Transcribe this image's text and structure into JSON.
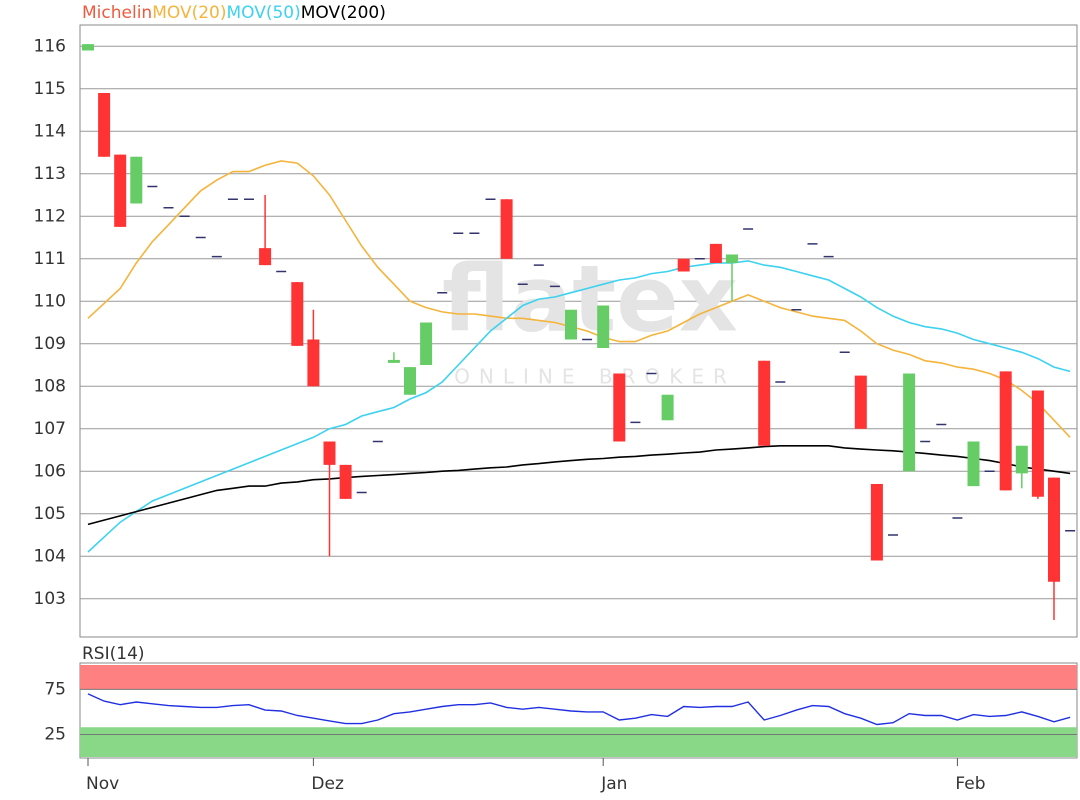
{
  "chart_data": [
    {
      "type": "candlestick",
      "categories": [
        "Nov",
        null,
        null,
        null,
        null,
        null,
        null,
        null,
        null,
        null,
        null,
        null,
        null,
        null,
        "Dez",
        null,
        null,
        null,
        null,
        null,
        null,
        null,
        null,
        null,
        null,
        null,
        null,
        null,
        null,
        null,
        null,
        null,
        "Jan",
        null,
        null,
        null,
        null,
        null,
        null,
        null,
        null,
        null,
        null,
        null,
        null,
        null,
        null,
        null,
        null,
        null,
        null,
        null,
        null,
        null,
        "Feb",
        null,
        null,
        null,
        null,
        null,
        null,
        null
      ],
      "ohlc": {
        "name": "Michelin",
        "color": "#f05a3c",
        "up_color": "#66cc66",
        "down_color": "#ff3333",
        "flat_color": "#33336e",
        "open": [
          115.9,
          114.9,
          113.45,
          112.3,
          112.7,
          112.2,
          112.0,
          111.5,
          111.05,
          112.4,
          112.4,
          111.25,
          110.7,
          110.45,
          109.1,
          106.7,
          106.15,
          105.5,
          106.7,
          108.55,
          107.8,
          108.5,
          110.2,
          111.6,
          111.6,
          112.4,
          112.4,
          110.4,
          110.85,
          110.35,
          109.1,
          109.1,
          108.9,
          108.3,
          107.15,
          108.3,
          107.2,
          111.0,
          111.0,
          111.35,
          110.9,
          111.7,
          108.6,
          108.1,
          109.8,
          111.35,
          111.05,
          108.8,
          108.25,
          105.7,
          104.5,
          106.0,
          106.7,
          107.1,
          104.9,
          105.65,
          106.0,
          108.35,
          105.95,
          107.9,
          105.85,
          104.6
        ],
        "high": [
          116.05,
          114.9,
          113.45,
          113.4,
          112.7,
          112.2,
          112.0,
          111.5,
          111.05,
          112.4,
          112.4,
          112.5,
          110.7,
          110.45,
          109.8,
          106.7,
          106.15,
          105.5,
          106.7,
          108.8,
          108.45,
          109.5,
          110.2,
          111.6,
          111.6,
          112.4,
          112.4,
          110.4,
          110.85,
          110.35,
          109.8,
          109.1,
          109.9,
          108.3,
          107.15,
          108.3,
          107.8,
          111.0,
          111.0,
          111.35,
          111.1,
          111.7,
          108.6,
          108.1,
          109.8,
          111.35,
          111.05,
          108.8,
          108.25,
          105.7,
          104.5,
          108.3,
          106.7,
          107.1,
          104.9,
          106.7,
          106.0,
          108.35,
          106.6,
          107.9,
          105.85,
          104.6
        ],
        "low": [
          115.9,
          113.4,
          111.75,
          112.3,
          112.7,
          112.2,
          112.0,
          111.5,
          111.05,
          112.4,
          112.4,
          110.85,
          110.7,
          108.95,
          108.0,
          104.0,
          105.35,
          105.5,
          106.7,
          108.55,
          107.8,
          108.5,
          110.2,
          111.6,
          111.6,
          112.4,
          111.0,
          110.4,
          110.85,
          110.35,
          109.1,
          109.1,
          108.9,
          106.7,
          107.15,
          108.3,
          107.2,
          110.7,
          111.0,
          110.9,
          110.0,
          111.7,
          106.6,
          108.1,
          109.8,
          111.35,
          111.05,
          108.8,
          107.0,
          103.9,
          104.5,
          106.0,
          106.7,
          107.1,
          104.9,
          105.65,
          106.0,
          105.55,
          105.6,
          105.35,
          102.5,
          104.6
        ],
        "close": [
          116.05,
          113.4,
          111.75,
          113.4,
          112.7,
          112.2,
          112.0,
          111.5,
          111.05,
          112.4,
          112.4,
          110.85,
          110.7,
          108.95,
          108.0,
          106.15,
          105.35,
          105.5,
          106.7,
          108.62,
          108.45,
          109.5,
          110.2,
          111.6,
          111.6,
          112.4,
          111.0,
          110.4,
          110.85,
          110.35,
          109.8,
          109.1,
          109.9,
          106.7,
          107.15,
          108.3,
          107.8,
          110.7,
          111.0,
          110.9,
          111.1,
          111.7,
          106.6,
          108.1,
          109.8,
          111.35,
          111.05,
          108.8,
          107.0,
          103.9,
          104.5,
          108.3,
          106.7,
          107.1,
          104.9,
          106.7,
          106.0,
          105.55,
          106.6,
          105.4,
          103.4,
          104.6
        ]
      },
      "series": [
        {
          "name": "MOV(20)",
          "color": "#f5b43c",
          "values": [
            109.6,
            109.95,
            110.3,
            110.9,
            111.4,
            111.8,
            112.2,
            112.6,
            112.85,
            113.05,
            113.05,
            113.2,
            113.3,
            113.25,
            112.95,
            112.5,
            111.9,
            111.3,
            110.8,
            110.4,
            110.0,
            109.85,
            109.75,
            109.7,
            109.7,
            109.65,
            109.6,
            109.6,
            109.55,
            109.5,
            109.4,
            109.3,
            109.15,
            109.05,
            109.05,
            109.2,
            109.3,
            109.5,
            109.7,
            109.85,
            110.0,
            110.15,
            110.0,
            109.85,
            109.75,
            109.65,
            109.6,
            109.55,
            109.3,
            109.0,
            108.85,
            108.75,
            108.6,
            108.55,
            108.45,
            108.4,
            108.3,
            108.15,
            107.9,
            107.6,
            107.2,
            106.8
          ]
        },
        {
          "name": "MOV(50)",
          "color": "#3cd2f0",
          "values": [
            104.1,
            104.45,
            104.8,
            105.05,
            105.3,
            105.45,
            105.6,
            105.75,
            105.9,
            106.05,
            106.2,
            106.35,
            106.5,
            106.65,
            106.8,
            107.0,
            107.1,
            107.3,
            107.4,
            107.5,
            107.7,
            107.85,
            108.1,
            108.5,
            108.9,
            109.3,
            109.6,
            109.9,
            110.05,
            110.1,
            110.2,
            110.3,
            110.4,
            110.5,
            110.55,
            110.65,
            110.7,
            110.8,
            110.85,
            110.9,
            110.9,
            110.95,
            110.85,
            110.8,
            110.7,
            110.6,
            110.5,
            110.3,
            110.1,
            109.85,
            109.65,
            109.5,
            109.4,
            109.35,
            109.25,
            109.1,
            109.0,
            108.9,
            108.8,
            108.65,
            108.45,
            108.35
          ]
        },
        {
          "name": "MOV(200)",
          "color": "#000000",
          "values": [
            104.75,
            104.85,
            104.95,
            105.05,
            105.15,
            105.25,
            105.35,
            105.45,
            105.55,
            105.6,
            105.65,
            105.65,
            105.72,
            105.75,
            105.8,
            105.82,
            105.85,
            105.88,
            105.9,
            105.92,
            105.95,
            105.97,
            106.0,
            106.02,
            106.05,
            106.08,
            106.1,
            106.15,
            106.18,
            106.22,
            106.25,
            106.28,
            106.3,
            106.33,
            106.35,
            106.38,
            106.4,
            106.43,
            106.45,
            106.5,
            106.52,
            106.55,
            106.58,
            106.6,
            106.6,
            106.6,
            106.6,
            106.55,
            106.52,
            106.5,
            106.48,
            106.45,
            106.42,
            106.38,
            106.35,
            106.3,
            106.25,
            106.18,
            106.1,
            106.05,
            106.0,
            105.95
          ]
        }
      ],
      "ylim": [
        102.1,
        116.5
      ],
      "yticks": [
        103,
        104,
        105,
        106,
        107,
        108,
        109,
        110,
        111,
        112,
        113,
        114,
        115,
        116
      ],
      "grid": true,
      "watermark": {
        "logo": "flatex",
        "tagline": "ONLINE BROKER"
      }
    },
    {
      "type": "line",
      "title": "RSI(14)",
      "color": "#2030e0",
      "values": [
        70,
        62,
        58,
        61,
        59,
        57,
        56,
        55,
        55,
        57,
        58,
        52,
        51,
        46,
        43,
        40,
        37,
        37,
        41,
        48,
        50,
        53,
        56,
        58,
        58,
        60,
        55,
        53,
        55,
        53,
        51,
        50,
        50,
        41,
        43,
        47,
        45,
        56,
        55,
        56,
        56,
        61,
        41,
        46,
        52,
        57,
        56,
        48,
        43,
        36,
        38,
        48,
        46,
        46,
        41,
        47,
        45,
        46,
        50,
        45,
        39,
        44
      ],
      "ylim": [
        0,
        102
      ],
      "yticks": [
        25,
        75
      ],
      "grid": true,
      "bands": [
        {
          "from": 75,
          "to": 102,
          "color": "#ff8080"
        },
        {
          "from": 0,
          "to": 33,
          "color": "#88d888"
        }
      ]
    }
  ]
}
